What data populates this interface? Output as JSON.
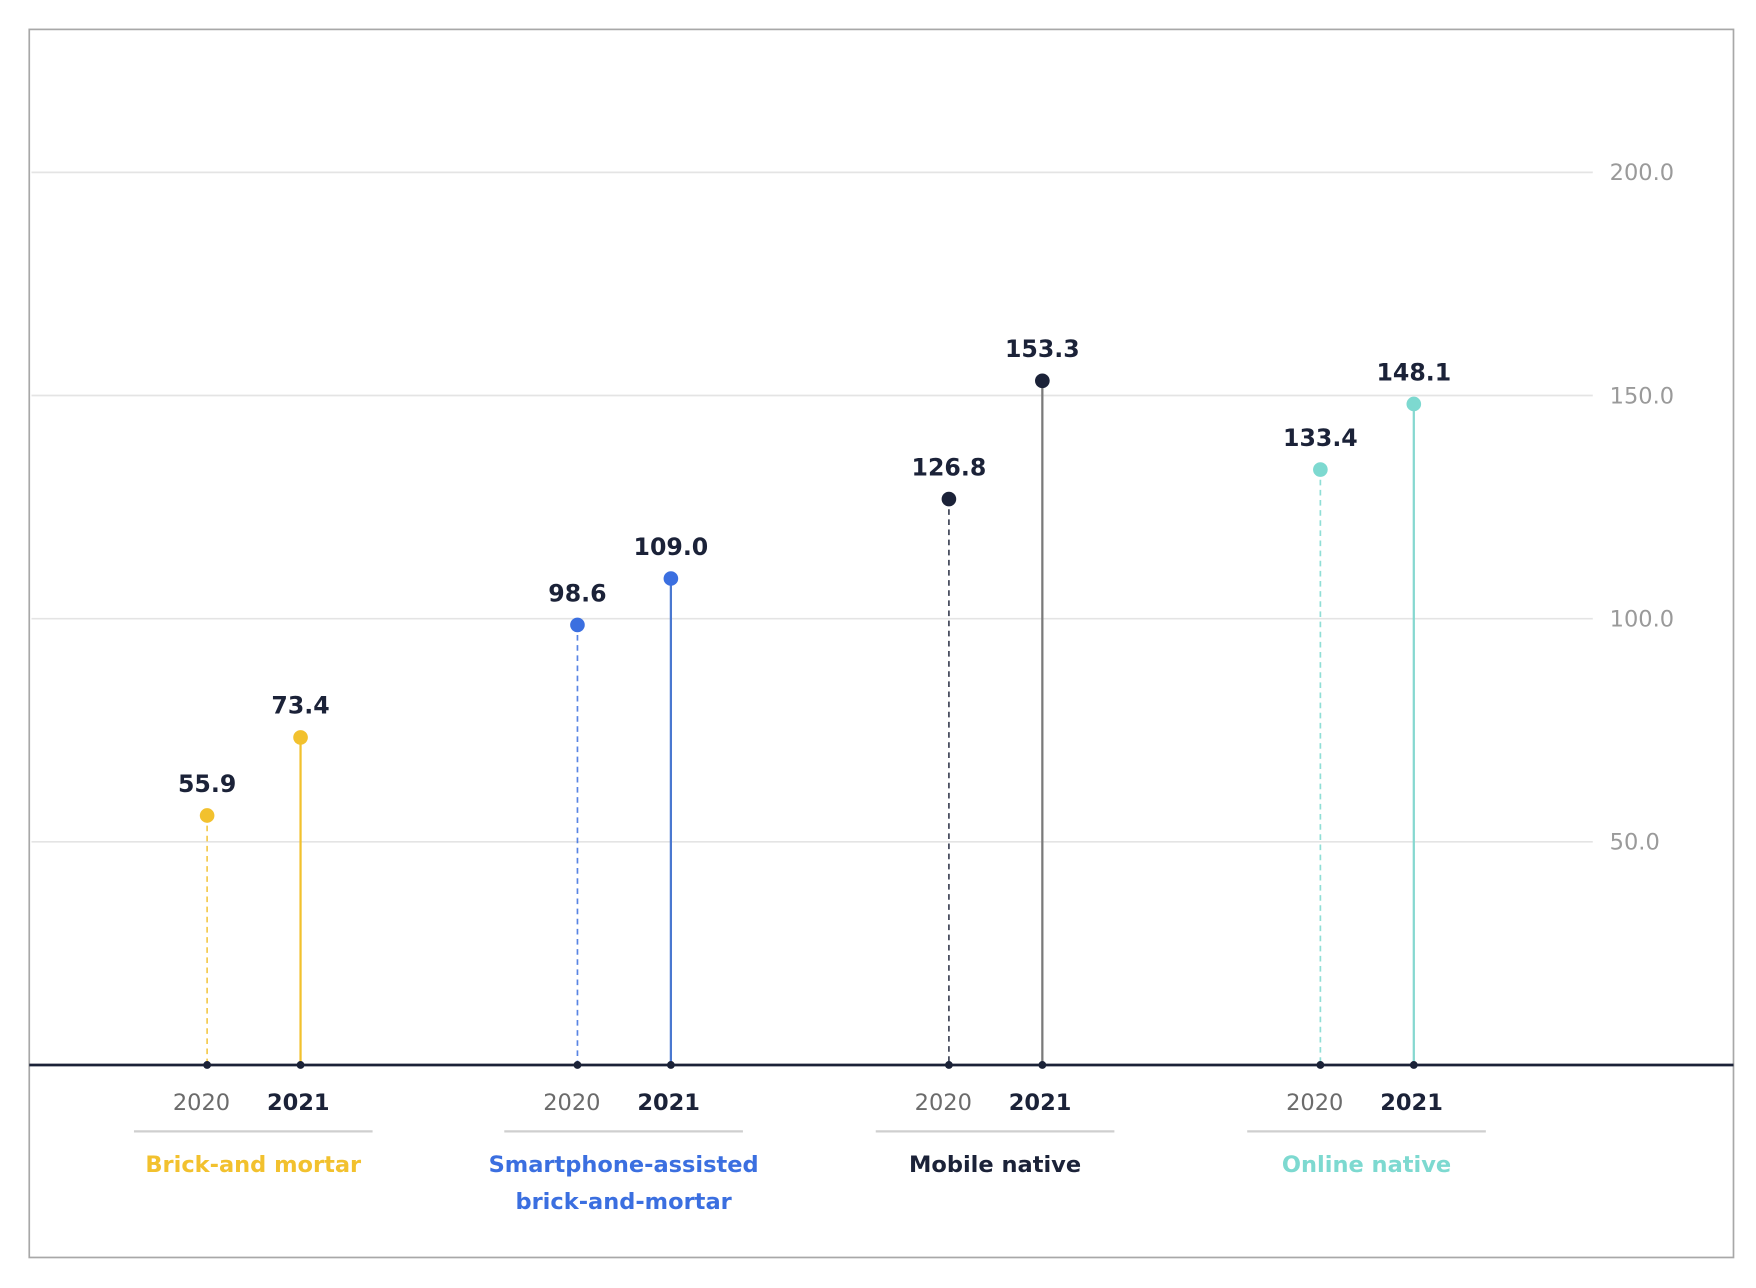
{
  "chart_data": {
    "type": "lollipop",
    "title": "",
    "xlabel": "",
    "ylabel": "",
    "ylim": [
      0,
      200
    ],
    "yticks": [
      "50.0",
      "100.0",
      "150.0",
      "200.0"
    ],
    "ytick_values": [
      50,
      100,
      150,
      200
    ],
    "grid": true,
    "years": [
      "2020",
      "2021"
    ],
    "groups": [
      {
        "name": "Brick-and mortar",
        "name_lines": [
          "Brick-and mortar"
        ],
        "color": "#f2c12e",
        "stem2021": "#f2c12e",
        "values": [
          55.9,
          73.4
        ],
        "labels": [
          "55.9",
          "73.4"
        ]
      },
      {
        "name": "Smartphone-assisted brick-and-mortar",
        "name_lines": [
          "Smartphone-assisted",
          "brick-and-mortar"
        ],
        "color": "#3b6fe0",
        "stem2021": "#4a78d0",
        "values": [
          98.6,
          109.0
        ],
        "labels": [
          "98.6",
          "109.0"
        ]
      },
      {
        "name": "Mobile native",
        "name_lines": [
          "Mobile native"
        ],
        "color": "#1b2238",
        "stem2021": "#7a7a7a",
        "values": [
          126.8,
          153.3
        ],
        "labels": [
          "126.8",
          "153.3"
        ]
      },
      {
        "name": "Online native",
        "name_lines": [
          "Online native"
        ],
        "color": "#7dd9d0",
        "stem2021": "#86d8d0",
        "values": [
          133.4,
          148.1
        ],
        "labels": [
          "133.4",
          "148.1"
        ]
      }
    ]
  }
}
